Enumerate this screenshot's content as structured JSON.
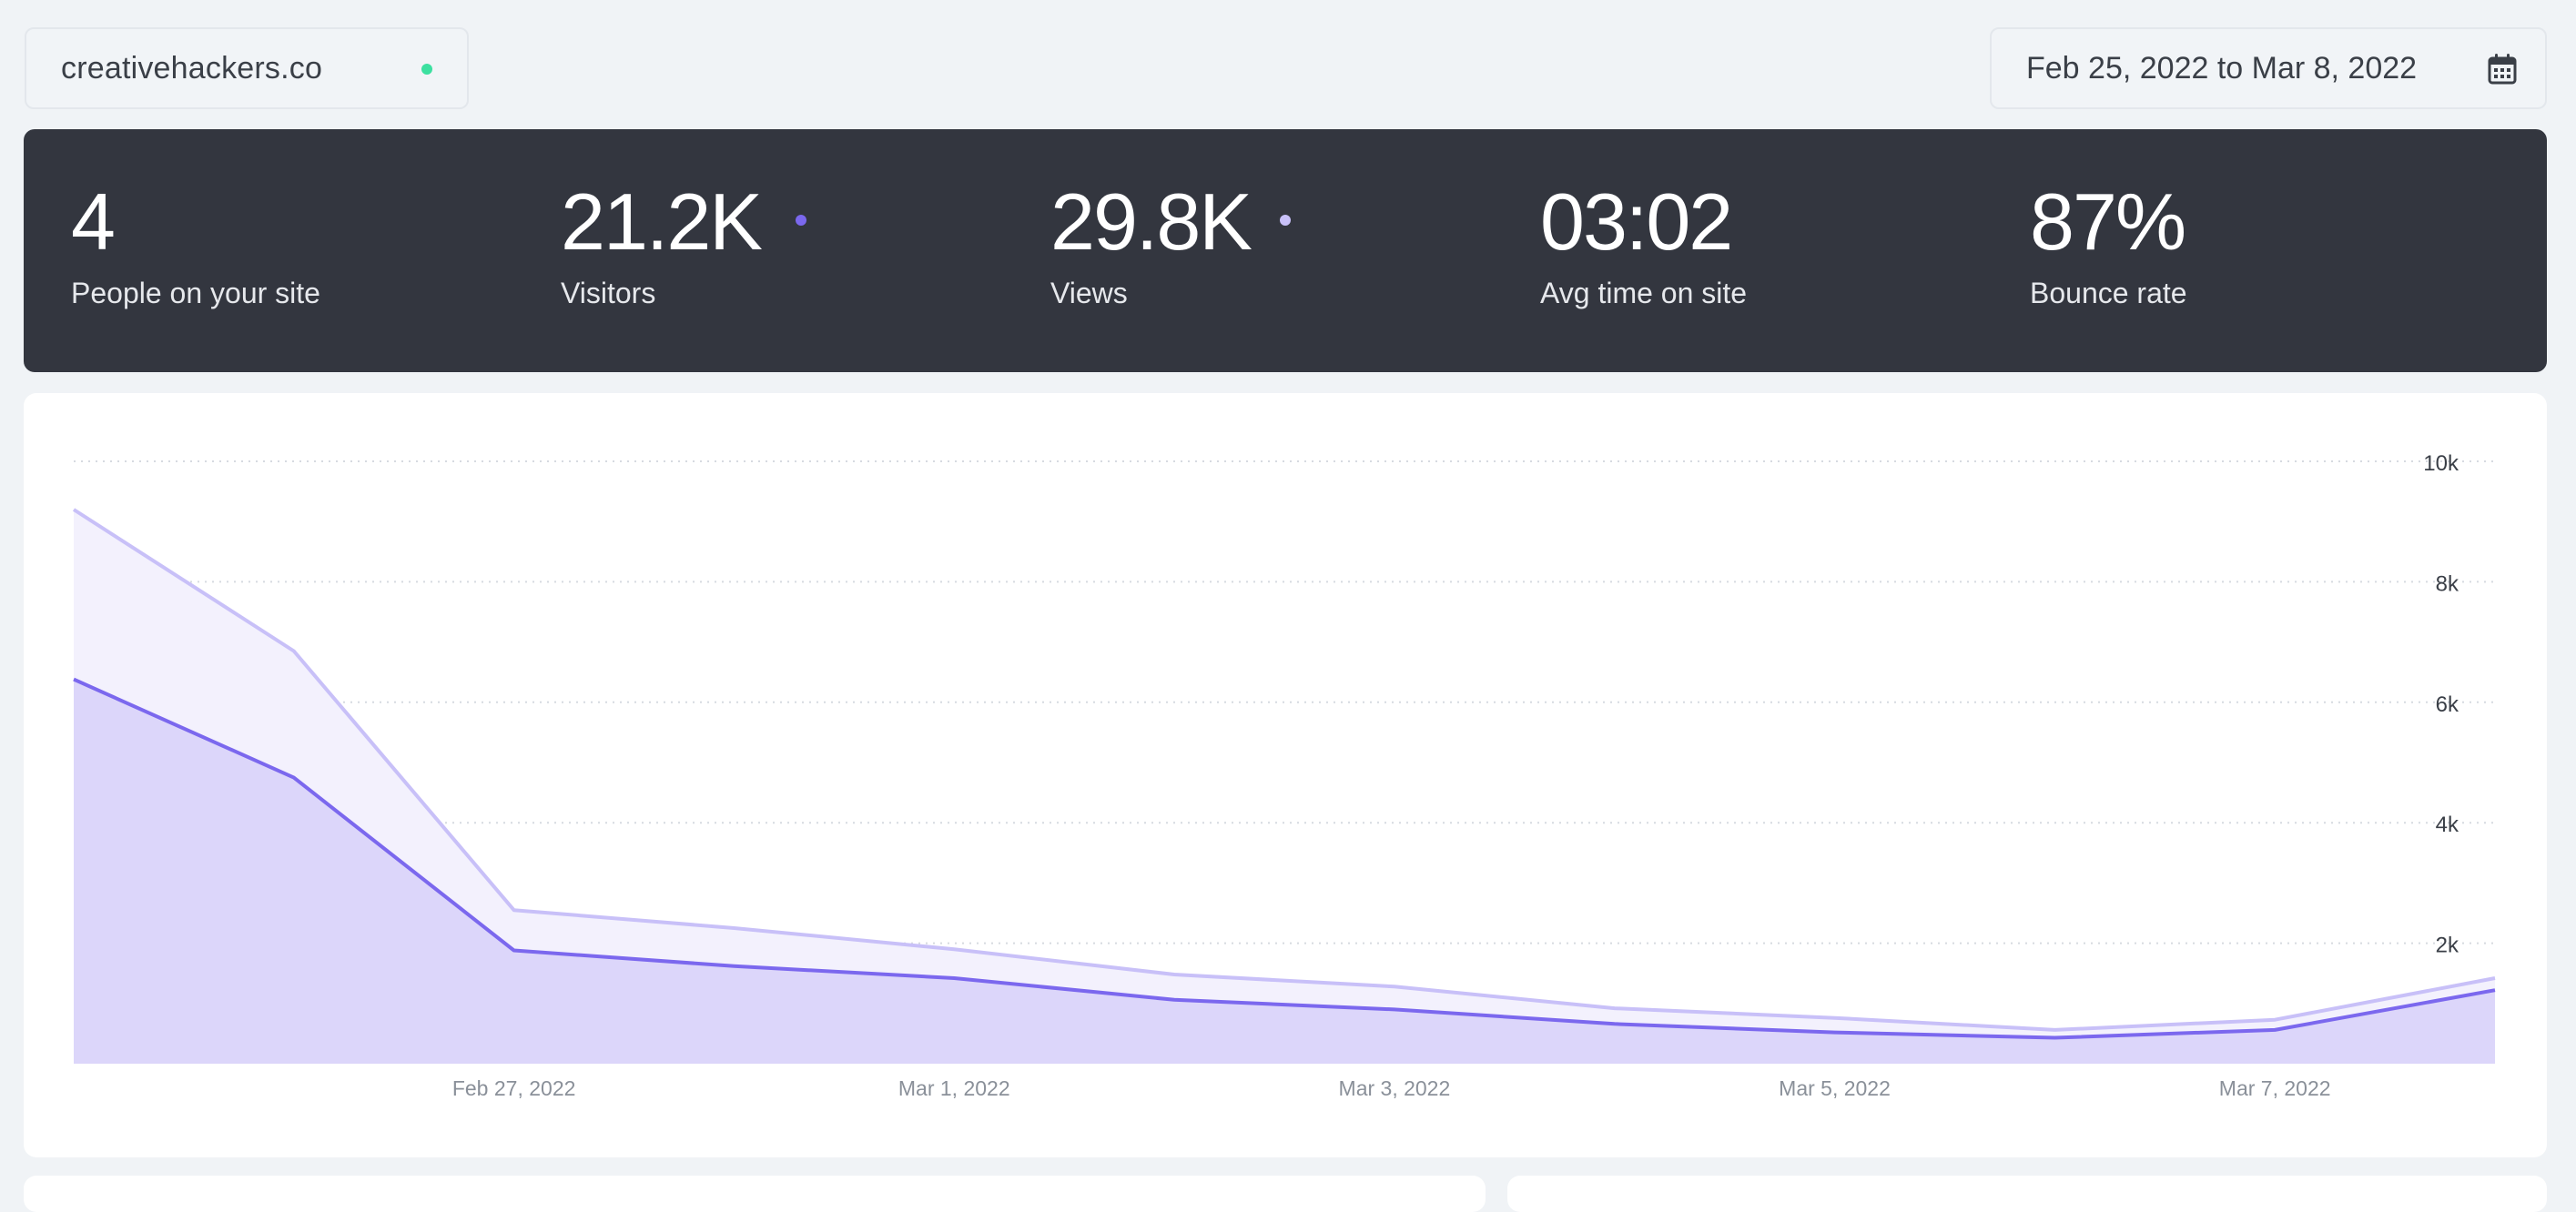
{
  "header": {
    "site_name": "creativehackers.co",
    "date_range": "Feb 25, 2022 to Mar 8, 2022"
  },
  "colors": {
    "live": "#3ce0a0",
    "visitors": "#7b68ee",
    "views": "#c8c0f8",
    "visitors_fill": "#dcd6fa",
    "views_fill": "#f3f1fd"
  },
  "icons": {
    "calendar": "calendar-icon",
    "live": "live-status-dot"
  },
  "stats": [
    {
      "value": "4",
      "label": "People on your site"
    },
    {
      "value": "21.2K",
      "label": "Visitors"
    },
    {
      "value": "29.8K",
      "label": "Views"
    },
    {
      "value": "03:02",
      "label": "Avg time on site"
    },
    {
      "value": "87%",
      "label": "Bounce rate"
    }
  ],
  "chart_data": {
    "type": "area",
    "x": [
      "2022-02-25",
      "2022-02-26",
      "2022-02-27",
      "2022-02-28",
      "2022-03-01",
      "2022-03-02",
      "2022-03-03",
      "2022-03-04",
      "2022-03-05",
      "2022-03-06",
      "2022-03-07",
      "2022-03-08"
    ],
    "x_ticks": [
      "Feb 27, 2022",
      "Mar 1, 2022",
      "Mar 3, 2022",
      "Mar 5, 2022",
      "Mar 7, 2022"
    ],
    "y_ticks": [
      "2k",
      "4k",
      "6k",
      "8k",
      "10k"
    ],
    "ylim": [
      0,
      10000
    ],
    "series": [
      {
        "key": "views",
        "values": [
          9200,
          6850,
          2550,
          2250,
          1900,
          1480,
          1280,
          920,
          760,
          560,
          730,
          1420
        ]
      },
      {
        "key": "visitors",
        "values": [
          6380,
          4750,
          1880,
          1620,
          1420,
          1060,
          900,
          660,
          520,
          430,
          560,
          1220
        ]
      }
    ],
    "grid": true,
    "y_axis_side": "right"
  }
}
